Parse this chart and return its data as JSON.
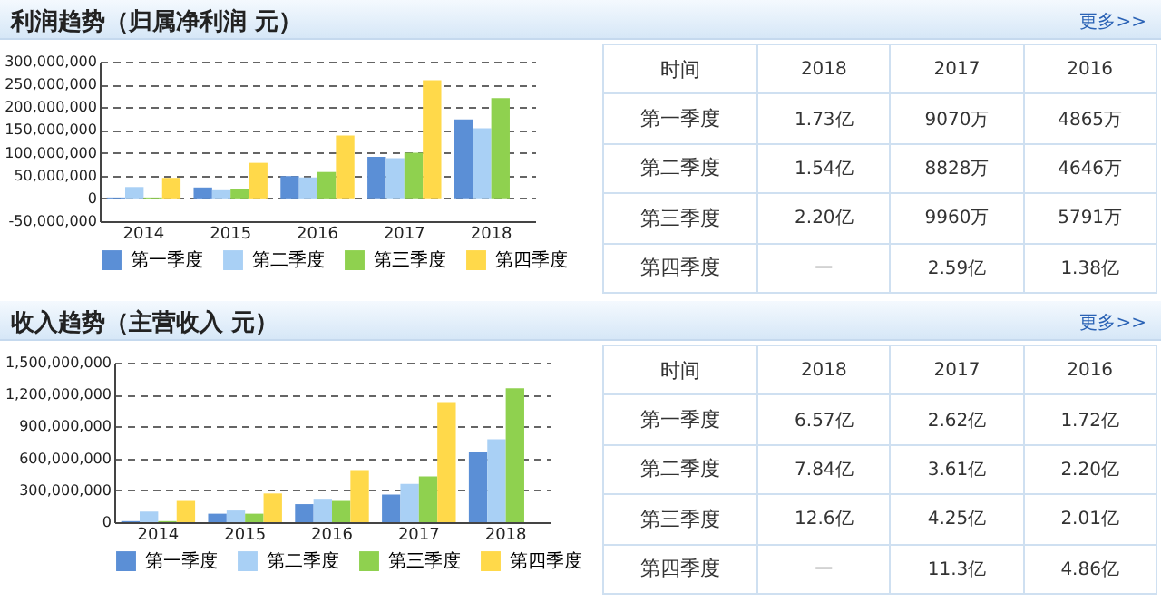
{
  "chart_data": [
    {
      "type": "bar",
      "title": "利润趋势（归属净利润  元）",
      "categories": [
        "2014",
        "2015",
        "2016",
        "2017",
        "2018"
      ],
      "series": [
        {
          "name": "第一季度",
          "color": "#5b8fd6",
          "values": [
            2000000,
            24000000,
            49000000,
            91000000,
            173000000
          ]
        },
        {
          "name": "第二季度",
          "color": "#a9d0f5",
          "values": [
            25000000,
            18000000,
            46000000,
            88000000,
            154000000
          ]
        },
        {
          "name": "第三季度",
          "color": "#8fd14f",
          "values": [
            2000000,
            20000000,
            58000000,
            100000000,
            220000000
          ]
        },
        {
          "name": "第四季度",
          "color": "#ffd94a",
          "values": [
            45000000,
            78000000,
            138000000,
            259000000,
            null
          ]
        }
      ],
      "ylim": [
        -50000000,
        300000000
      ],
      "yticks": [
        {
          "value": -50000000,
          "label": "-50,000,000"
        },
        0,
        {
          "value": 50000000,
          "label": "50,000,000"
        },
        {
          "value": 100000000,
          "label": "100,000,000"
        },
        {
          "value": 150000000,
          "label": "150,000,000"
        },
        {
          "value": 200000000,
          "label": "200,000,000"
        },
        {
          "value": 250000000,
          "label": "250,000,000"
        },
        {
          "value": 300000000,
          "label": "300,000,000"
        }
      ],
      "grid": "y",
      "legend": "bottom"
    },
    {
      "type": "other",
      "categories": [
        "2018",
        "2017",
        "2016"
      ],
      "y_categories": [
        "第一季度",
        "第二季度",
        "第三季度",
        "第四季度"
      ],
      "cell_labels": [
        [
          "1.73亿",
          "9070万",
          "4865万"
        ],
        [
          "1.54亿",
          "8828万",
          "4646万"
        ],
        [
          "2.20亿",
          "9960万",
          "5791万"
        ],
        [
          "—",
          "2.59亿",
          "1.38亿"
        ]
      ],
      "annotations": [
        "时间",
        "更多>>"
      ]
    },
    {
      "type": "bar",
      "title": "收入趋势（主营收入  元）",
      "categories": [
        "2014",
        "2015",
        "2016",
        "2017",
        "2018"
      ],
      "series": [
        {
          "name": "第一季度",
          "color": "#5b8fd6",
          "values": [
            10000000,
            80000000,
            170000000,
            260000000,
            660000000
          ]
        },
        {
          "name": "第二季度",
          "color": "#a9d0f5",
          "values": [
            100000000,
            110000000,
            220000000,
            360000000,
            780000000
          ]
        },
        {
          "name": "第三季度",
          "color": "#8fd14f",
          "values": [
            10000000,
            80000000,
            200000000,
            430000000,
            1260000000
          ]
        },
        {
          "name": "第四季度",
          "color": "#ffd94a",
          "values": [
            200000000,
            270000000,
            490000000,
            1130000000,
            null
          ]
        }
      ],
      "ylim": [
        0,
        1500000000
      ],
      "yticks": [
        0,
        {
          "value": 300000000,
          "label": "300,000,000"
        },
        {
          "value": 600000000,
          "label": "600,000,000"
        },
        {
          "value": 900000000,
          "label": "900,000,000"
        },
        {
          "value": 1200000000,
          "label": "1,200,000,000"
        },
        {
          "value": 1500000000,
          "label": "1,500,000,000"
        }
      ],
      "grid": "y",
      "legend": "bottom"
    },
    {
      "type": "other",
      "categories": [
        "2018",
        "2017",
        "2016"
      ],
      "y_categories": [
        "第一季度",
        "第二季度",
        "第三季度",
        "第四季度"
      ],
      "cell_labels": [
        [
          "6.57亿",
          "2.62亿",
          "1.72亿"
        ],
        [
          "7.84亿",
          "3.61亿",
          "2.20亿"
        ],
        [
          "12.6亿",
          "4.25亿",
          "2.01亿"
        ],
        [
          "—",
          "11.3亿",
          "4.86亿"
        ]
      ],
      "annotations": [
        "时间",
        "更多>>"
      ]
    }
  ]
}
